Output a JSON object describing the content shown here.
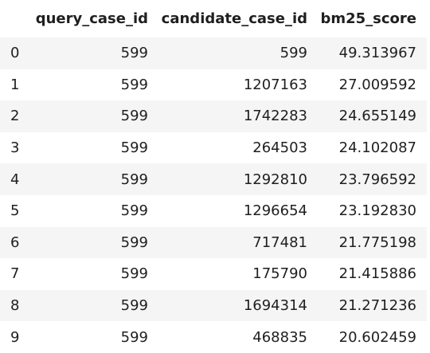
{
  "table": {
    "columns": [
      "",
      "query_case_id",
      "candidate_case_id",
      "bm25_score"
    ],
    "rows": [
      {
        "index": "0",
        "query_case_id": "599",
        "candidate_case_id": "599",
        "bm25_score": "49.313967"
      },
      {
        "index": "1",
        "query_case_id": "599",
        "candidate_case_id": "1207163",
        "bm25_score": "27.009592"
      },
      {
        "index": "2",
        "query_case_id": "599",
        "candidate_case_id": "1742283",
        "bm25_score": "24.655149"
      },
      {
        "index": "3",
        "query_case_id": "599",
        "candidate_case_id": "264503",
        "bm25_score": "24.102087"
      },
      {
        "index": "4",
        "query_case_id": "599",
        "candidate_case_id": "1292810",
        "bm25_score": "23.796592"
      },
      {
        "index": "5",
        "query_case_id": "599",
        "candidate_case_id": "1296654",
        "bm25_score": "23.192830"
      },
      {
        "index": "6",
        "query_case_id": "599",
        "candidate_case_id": "717481",
        "bm25_score": "21.775198"
      },
      {
        "index": "7",
        "query_case_id": "599",
        "candidate_case_id": "175790",
        "bm25_score": "21.415886"
      },
      {
        "index": "8",
        "query_case_id": "599",
        "candidate_case_id": "1694314",
        "bm25_score": "21.271236"
      },
      {
        "index": "9",
        "query_case_id": "599",
        "candidate_case_id": "468835",
        "bm25_score": "20.602459"
      }
    ]
  },
  "colors": {
    "text": "#1f1f1f",
    "row_stripe": "#f5f5f5",
    "background": "#ffffff"
  }
}
